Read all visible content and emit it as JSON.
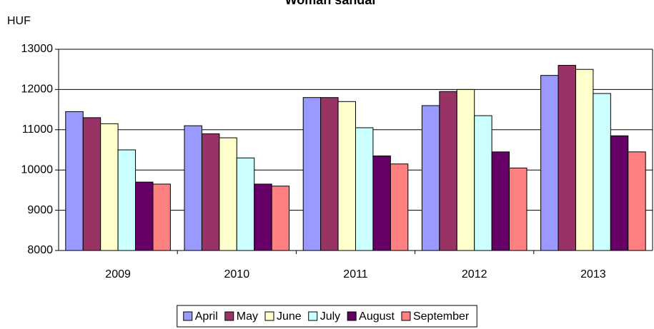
{
  "chart_data": {
    "type": "bar",
    "title": "Woman sandal",
    "y_label": "HUF",
    "categories": [
      "2009",
      "2010",
      "2011",
      "2012",
      "2013"
    ],
    "series": [
      {
        "name": "April",
        "color": "#9999ff",
        "values": [
          11450,
          11100,
          11800,
          11600,
          12350
        ]
      },
      {
        "name": "May",
        "color": "#993366",
        "values": [
          11300,
          10900,
          11800,
          11950,
          12600
        ]
      },
      {
        "name": "June",
        "color": "#ffffcc",
        "values": [
          11150,
          10800,
          11700,
          12000,
          12500
        ]
      },
      {
        "name": "July",
        "color": "#ccffff",
        "values": [
          10500,
          10300,
          11050,
          11350,
          11900
        ]
      },
      {
        "name": "August",
        "color": "#660066",
        "values": [
          9700,
          9650,
          10350,
          10450,
          10850
        ]
      },
      {
        "name": "September",
        "color": "#ff8080",
        "values": [
          9650,
          9600,
          10150,
          10050,
          10450
        ]
      }
    ],
    "ylim": [
      8000,
      13000
    ],
    "yticks": [
      8000,
      9000,
      10000,
      11000,
      12000,
      13000
    ],
    "grid": true,
    "legend": "bottom"
  }
}
